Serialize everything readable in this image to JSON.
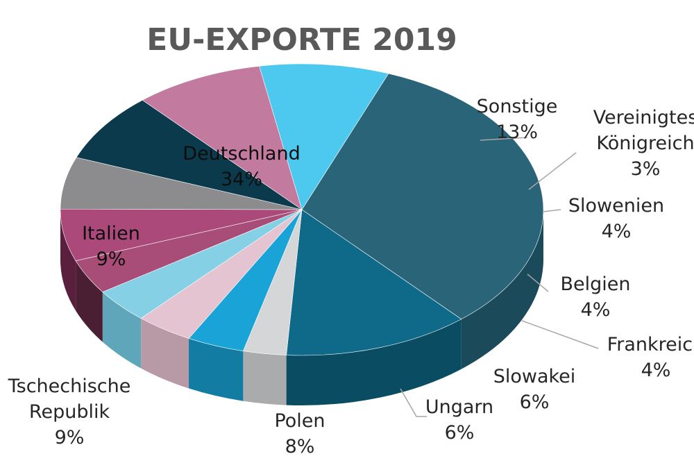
{
  "chart_data": {
    "type": "pie",
    "title": "EU-EXPORTE 2019",
    "slices": [
      {
        "label": "Deutschland",
        "value": 34,
        "percent_label": "34%",
        "color": "#2a6478",
        "side_color": "#1b4a5a"
      },
      {
        "label": "Sonstige",
        "value": 13,
        "percent_label": "13%",
        "color": "#0f6a89",
        "side_color": "#0a4d63"
      },
      {
        "label": "Vereinigtes Königreich",
        "label_lines": [
          "Vereinigtes",
          "Königreich"
        ],
        "value": 3,
        "percent_label": "3%",
        "color": "#d4d6d8",
        "side_color": "#a9abad"
      },
      {
        "label": "Slowenien",
        "value": 4,
        "percent_label": "4%",
        "color": "#1aa3d6",
        "side_color": "#137ca3"
      },
      {
        "label": "",
        "value": 4,
        "percent_label": "",
        "color": "#e3c4d0",
        "side_color": "#b899a6"
      },
      {
        "label": "Belgien",
        "value": 4,
        "percent_label": "4%",
        "color": "#86d0e6",
        "side_color": "#5fa6ba"
      },
      {
        "label": "Frankreich",
        "value": 4,
        "percent_label": "4%",
        "color": "#a84d77",
        "side_color": "#4a1f33"
      },
      {
        "label": "Slowakei",
        "value": 6,
        "percent_label": "6%",
        "color": "#ab4a7a",
        "side_color": "#5a1f3d"
      },
      {
        "label": "Ungarn",
        "value": 6,
        "percent_label": "6%",
        "color": "#8c8c8f",
        "side_color": "#5e5e62"
      },
      {
        "label": "Polen",
        "value": 8,
        "percent_label": "8%",
        "color": "#0a3a4c",
        "side_color": "#062a37"
      },
      {
        "label": "Tschechische Republik",
        "label_lines": [
          "Tschechische",
          "Republik"
        ],
        "value": 9,
        "percent_label": "9%",
        "color": "#c27a9e",
        "side_color": "#8c4f70"
      },
      {
        "label": "Italien",
        "value": 9,
        "percent_label": "9%",
        "color": "#4dc8ef",
        "side_color": "#2f9fc4"
      }
    ],
    "legend": "none"
  }
}
